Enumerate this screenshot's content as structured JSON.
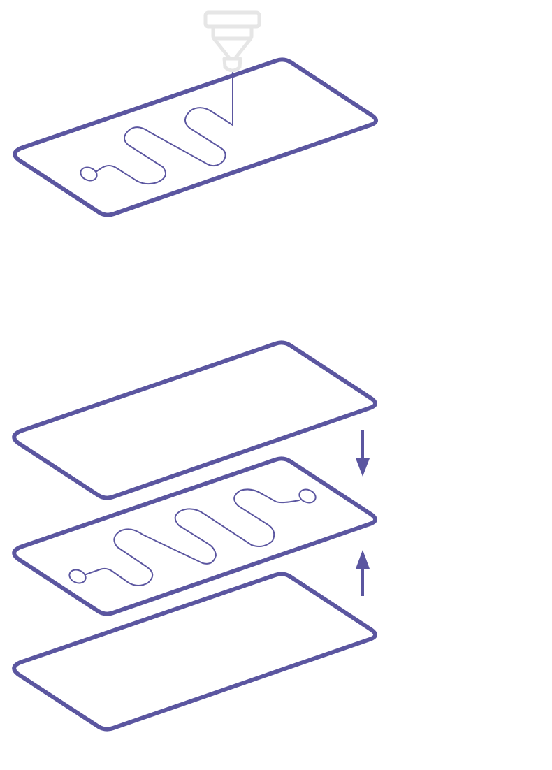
{
  "diagram": {
    "description_steps": [
      "print-channel-layer",
      "stack-and-bond-layers"
    ],
    "colors": {
      "plate": "#5b56a0",
      "channel": "#5b56a0",
      "nozzle": "#e6e6e6",
      "arrow": "#5b56a0",
      "background": "#ffffff"
    },
    "icons": {
      "printer_nozzle": "printer-nozzle-icon",
      "arrow_down": "arrow-down-icon",
      "arrow_up": "arrow-up-icon"
    },
    "stack_layers": [
      "top-cover-plate",
      "channel-layer-plate",
      "bottom-base-plate"
    ]
  }
}
